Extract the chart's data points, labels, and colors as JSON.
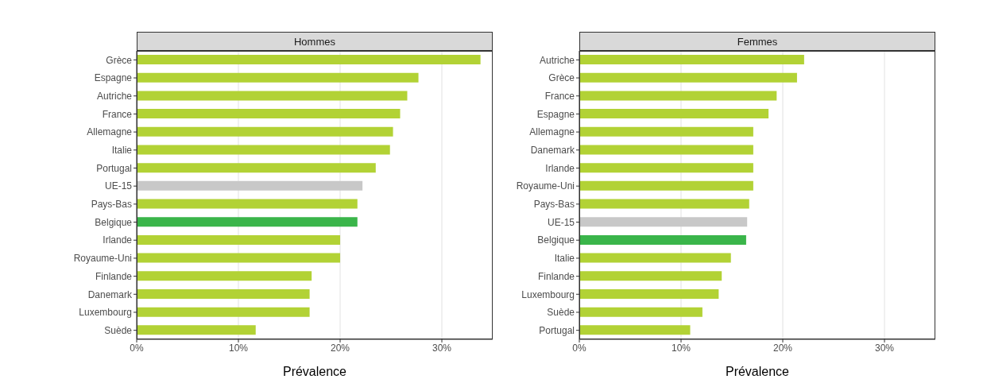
{
  "chart_data": [
    {
      "type": "bar",
      "orientation": "horizontal",
      "title": "Hommes",
      "xlabel": "Prévalence",
      "categories": [
        "Grèce",
        "Espagne",
        "Autriche",
        "France",
        "Allemagne",
        "Italie",
        "Portugal",
        "UE-15",
        "Pays-Bas",
        "Belgique",
        "Irlande",
        "Royaume-Uni",
        "Finlande",
        "Danemark",
        "Luxembourg",
        "Suède"
      ],
      "values": [
        33.8,
        27.7,
        26.6,
        25.9,
        25.2,
        24.9,
        23.5,
        22.2,
        21.7,
        21.7,
        20.0,
        20.0,
        17.2,
        17.0,
        17.0,
        11.7
      ],
      "colors": [
        "#b2d235",
        "#b2d235",
        "#b2d235",
        "#b2d235",
        "#b2d235",
        "#b2d235",
        "#b2d235",
        "#c8c8c8",
        "#b2d235",
        "#3ab54a",
        "#b2d235",
        "#b2d235",
        "#b2d235",
        "#b2d235",
        "#b2d235",
        "#b2d235"
      ],
      "xlim": [
        0,
        35
      ],
      "xticks": [
        {
          "value": 0,
          "label": "0%"
        },
        {
          "value": 10,
          "label": "10%"
        },
        {
          "value": 20,
          "label": "20%"
        },
        {
          "value": 30,
          "label": "30%"
        }
      ],
      "grid": "x"
    },
    {
      "type": "bar",
      "orientation": "horizontal",
      "title": "Femmes",
      "xlabel": "Prévalence",
      "categories": [
        "Autriche",
        "Grèce",
        "France",
        "Espagne",
        "Allemagne",
        "Danemark",
        "Irlande",
        "Royaume-Uni",
        "Pays-Bas",
        "UE-15",
        "Belgique",
        "Italie",
        "Finlande",
        "Luxembourg",
        "Suède",
        "Portugal"
      ],
      "values": [
        22.1,
        21.4,
        19.4,
        18.6,
        17.1,
        17.1,
        17.1,
        17.1,
        16.7,
        16.5,
        16.4,
        14.9,
        14.0,
        13.7,
        12.1,
        10.9
      ],
      "colors": [
        "#b2d235",
        "#b2d235",
        "#b2d235",
        "#b2d235",
        "#b2d235",
        "#b2d235",
        "#b2d235",
        "#b2d235",
        "#b2d235",
        "#c8c8c8",
        "#3ab54a",
        "#b2d235",
        "#b2d235",
        "#b2d235",
        "#b2d235",
        "#b2d235"
      ],
      "xlim": [
        0,
        35
      ],
      "xticks": [
        {
          "value": 0,
          "label": "0%"
        },
        {
          "value": 10,
          "label": "10%"
        },
        {
          "value": 20,
          "label": "20%"
        },
        {
          "value": 30,
          "label": "30%"
        }
      ],
      "grid": "x"
    }
  ]
}
